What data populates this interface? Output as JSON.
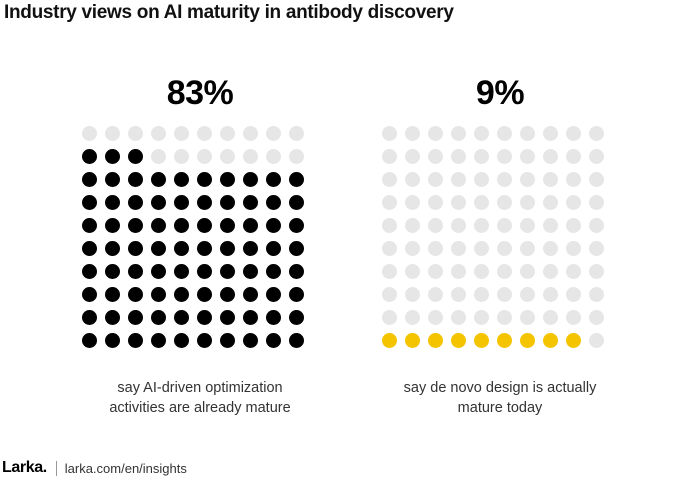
{
  "title": "Industry views on AI maturity in antibody discovery",
  "colors": {
    "empty": "#e6e6e6",
    "filled_left": "#000000",
    "filled_right": "#f5c400"
  },
  "chart_data": [
    {
      "type": "waffle",
      "title": "83%",
      "grid": {
        "rows": 10,
        "cols": 10
      },
      "total": 100,
      "filled": 83,
      "fill_from": "bottom",
      "filled_color": "#000000",
      "empty_color": "#e6e6e6",
      "caption_lines": [
        "say AI-driven optimization",
        "activities are already mature"
      ]
    },
    {
      "type": "waffle",
      "title": "9%",
      "grid": {
        "rows": 10,
        "cols": 10
      },
      "total": 100,
      "filled": 9,
      "fill_from": "bottom",
      "filled_color": "#f5c400",
      "empty_color": "#e6e6e6",
      "caption_lines": [
        "say de novo design is actually",
        "mature today"
      ]
    }
  ],
  "footer": {
    "logo": "Larka.",
    "url": "larka.com/en/insights"
  }
}
